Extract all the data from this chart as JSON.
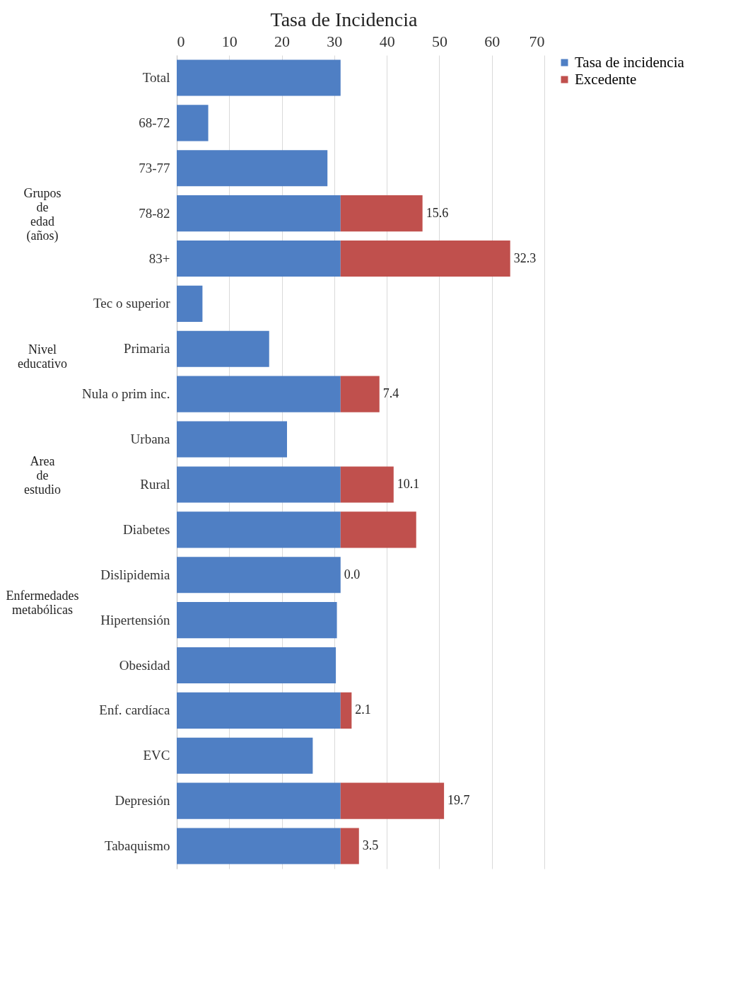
{
  "chart_data": {
    "type": "bar",
    "orientation": "horizontal",
    "stacked": true,
    "title": "Tasa de Incidencia",
    "categories": [
      "Total",
      "68-72",
      "73-77",
      "78-82",
      "83+",
      "Tec o superior",
      "Primaria",
      "Nula o prim inc.",
      "Urbana",
      "Rural",
      "Diabetes",
      "Dislipidemia",
      "Hipertensión",
      "Obesidad",
      "Enf. cardíaca",
      "EVC",
      "Depresión",
      "Tabaquismo"
    ],
    "series": [
      {
        "name": "Tasa de incidencia",
        "color": "#4f7fc4",
        "values": [
          31.2,
          6.0,
          28.7,
          31.2,
          31.2,
          4.9,
          17.6,
          31.2,
          21.0,
          31.2,
          31.2,
          31.2,
          30.5,
          30.3,
          31.2,
          25.9,
          31.2,
          31.2
        ]
      },
      {
        "name": "Excedente",
        "color": "#c0504d",
        "values": [
          null,
          null,
          null,
          15.6,
          32.3,
          null,
          null,
          7.4,
          null,
          10.1,
          14.4,
          0.0,
          null,
          null,
          2.1,
          null,
          19.7,
          3.5
        ],
        "value_labels": [
          null,
          null,
          null,
          "15.6",
          "32.3",
          null,
          null,
          "7.4",
          null,
          "10.1",
          null,
          "0.0",
          null,
          null,
          "2.1",
          null,
          "19.7",
          "3.5"
        ]
      }
    ],
    "xlim": [
      0,
      70
    ],
    "xticks": [
      0,
      10,
      20,
      30,
      40,
      50,
      60,
      70
    ],
    "grid": "x",
    "legend": "right",
    "annotations": [
      "Grupos de edad (años)",
      "Nivel educativo",
      "Area de estudio",
      "Enfermedades metabólicas"
    ]
  }
}
